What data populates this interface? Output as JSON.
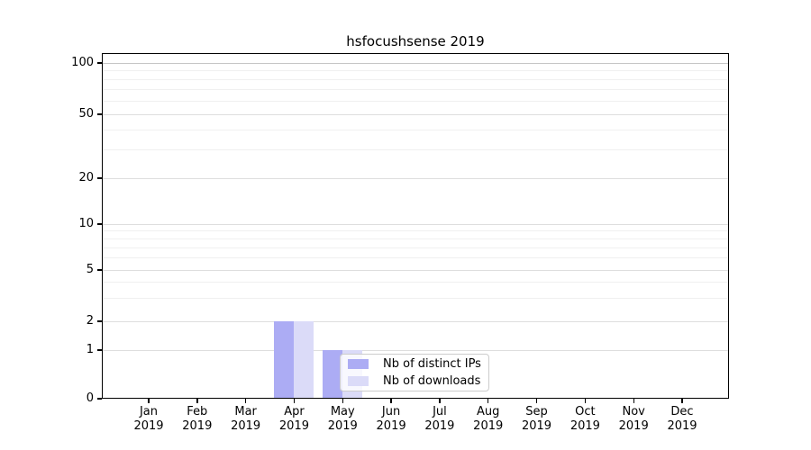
{
  "title": "hsfocushsense 2019",
  "legend": {
    "items": [
      {
        "label": "Nb of distinct IPs",
        "color": "#acacf4"
      },
      {
        "label": "Nb of downloads",
        "color": "#dbdbf8"
      }
    ]
  },
  "chart_data": {
    "type": "bar",
    "title": "hsfocushsense 2019",
    "categories": [
      "Jan 2019",
      "Feb 2019",
      "Mar 2019",
      "Apr 2019",
      "May 2019",
      "Jun 2019",
      "Jul 2019",
      "Aug 2019",
      "Sep 2019",
      "Oct 2019",
      "Nov 2019",
      "Dec 2019"
    ],
    "series": [
      {
        "name": "Nb of distinct IPs",
        "color": "#acacf4",
        "values": [
          0,
          0,
          0,
          2,
          1,
          0,
          0,
          0,
          0,
          0,
          0,
          0
        ]
      },
      {
        "name": "Nb of downloads",
        "color": "#dbdbf8",
        "values": [
          0,
          0,
          0,
          2,
          1,
          0,
          0,
          0,
          0,
          0,
          0,
          0
        ]
      }
    ],
    "xlabel": "",
    "ylabel": "",
    "yscale": "symlog",
    "yticks": [
      0,
      1,
      2,
      5,
      10,
      20,
      50,
      100
    ],
    "minor_yticks": [
      3,
      4,
      6,
      7,
      8,
      9,
      30,
      40,
      60,
      70,
      80,
      90
    ],
    "ylim": [
      0,
      115
    ],
    "grid": true,
    "legend_position": "lower-center-inside"
  }
}
